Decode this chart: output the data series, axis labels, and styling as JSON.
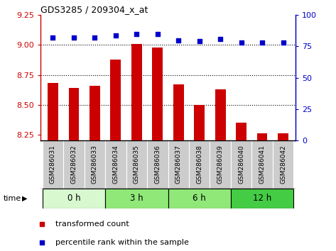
{
  "title": "GDS3285 / 209304_x_at",
  "samples": [
    "GSM286031",
    "GSM286032",
    "GSM286033",
    "GSM286034",
    "GSM286035",
    "GSM286036",
    "GSM286037",
    "GSM286038",
    "GSM286039",
    "GSM286040",
    "GSM286041",
    "GSM286042"
  ],
  "transformed_count": [
    8.68,
    8.64,
    8.66,
    8.88,
    9.01,
    8.98,
    8.67,
    8.5,
    8.63,
    8.35,
    8.26,
    8.26
  ],
  "percentile_rank": [
    82,
    82,
    82,
    84,
    85,
    85,
    80,
    79,
    81,
    78,
    78,
    78
  ],
  "bar_color": "#cc0000",
  "dot_color": "#0000cc",
  "ylim_left": [
    8.2,
    9.25
  ],
  "ylim_right": [
    0,
    100
  ],
  "yticks_left": [
    8.25,
    8.5,
    8.75,
    9.0,
    9.25
  ],
  "yticks_right": [
    0,
    25,
    50,
    75,
    100
  ],
  "grid_values": [
    9.0,
    8.75,
    8.5
  ],
  "groups": [
    {
      "label": "0 h",
      "start": 0,
      "end": 3,
      "color": "#d8f8d0"
    },
    {
      "label": "3 h",
      "start": 3,
      "end": 6,
      "color": "#90e878"
    },
    {
      "label": "6 h",
      "start": 6,
      "end": 9,
      "color": "#90e878"
    },
    {
      "label": "12 h",
      "start": 9,
      "end": 12,
      "color": "#44cc44"
    }
  ],
  "time_label": "time",
  "legend_bar_label": "transformed count",
  "legend_dot_label": "percentile rank within the sample",
  "bar_bottom": 8.2,
  "sample_box_color": "#cccccc",
  "bar_width": 0.5
}
